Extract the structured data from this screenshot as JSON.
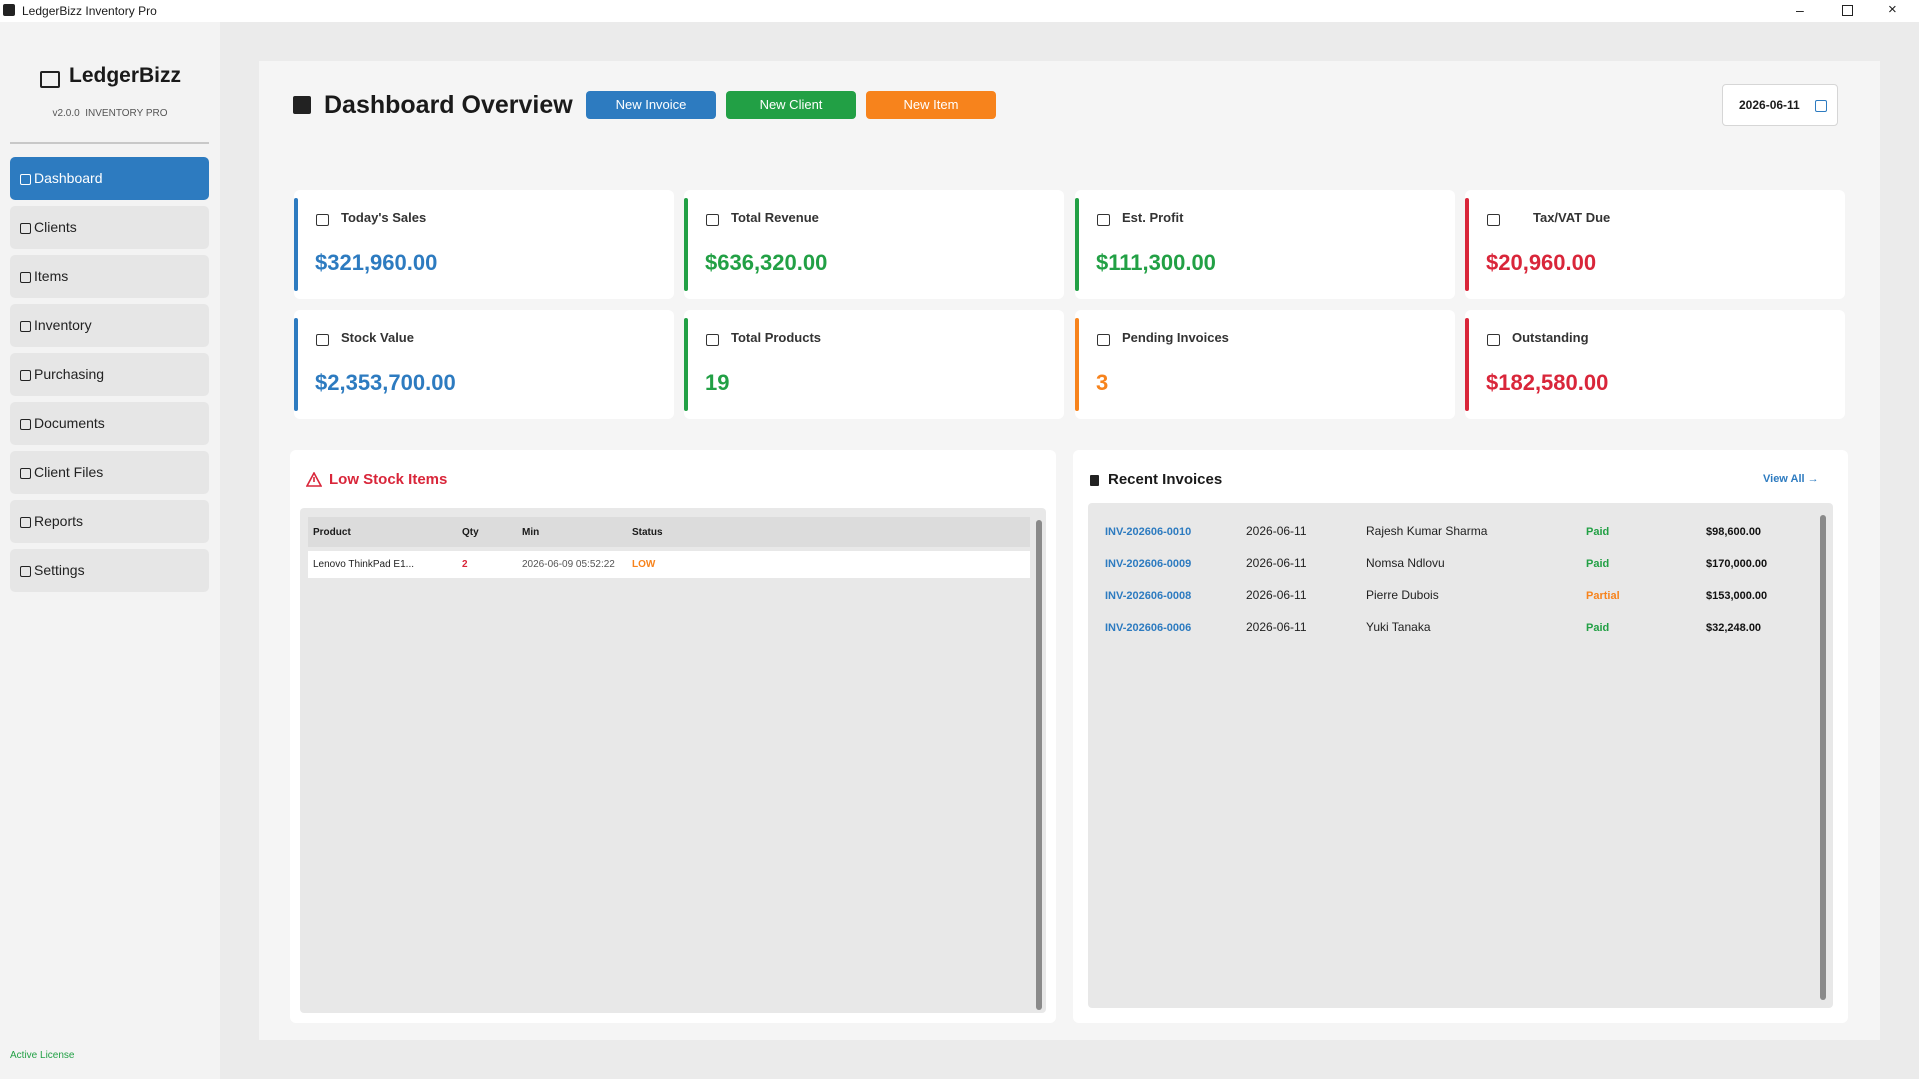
{
  "window": {
    "title": "LedgerBizz Inventory Pro"
  },
  "sidebar": {
    "brand": "LedgerBizz",
    "version": "v2.0.0  INVENTORY PRO",
    "nav": [
      "Dashboard",
      "Clients",
      "Items",
      "Inventory",
      "Purchasing",
      "Documents",
      "Client Files",
      "Reports",
      "Settings"
    ],
    "license": "Active License"
  },
  "header": {
    "title": "Dashboard Overview",
    "buttons": [
      "New Invoice",
      "New Client",
      "New Item"
    ],
    "date": "2026-06-11"
  },
  "stats": [
    {
      "label": "Today's Sales",
      "value": "$321,960.00"
    },
    {
      "label": "Total Revenue",
      "value": "$636,320.00"
    },
    {
      "label": "Est. Profit",
      "value": "$111,300.00"
    },
    {
      "label": "Tax/VAT Due",
      "value": "$20,960.00"
    },
    {
      "label": "Stock Value",
      "value": "$2,353,700.00"
    },
    {
      "label": "Total Products",
      "value": 19
    },
    {
      "label": "Pending Invoices",
      "value": 3
    },
    {
      "label": "Outstanding",
      "value": "$182,580.00"
    }
  ],
  "low_stock": {
    "title": "Low Stock Items",
    "columns": [
      "Product",
      "Qty",
      "Min",
      "Status"
    ],
    "rows": [
      [
        "Lenovo ThinkPad E1...",
        2,
        "2026-06-09 05:52:22",
        "LOW"
      ]
    ]
  },
  "recent_invoices": {
    "title": "Recent Invoices",
    "view_all": "View All →",
    "rows": [
      [
        "INV-202606-0010",
        "2026-06-11",
        "Rajesh Kumar Sharma",
        "Paid",
        "$98,600.00"
      ],
      [
        "INV-202606-0009",
        "2026-06-11",
        "Nomsa Ndlovu",
        "Paid",
        "$170,000.00"
      ],
      [
        "INV-202606-0008",
        "2026-06-11",
        "Pierre Dubois",
        "Partial",
        "$153,000.00"
      ],
      [
        "INV-202606-0006",
        "2026-06-11",
        "Yuki Tanaka",
        "Paid",
        "$32,248.00"
      ]
    ]
  }
}
